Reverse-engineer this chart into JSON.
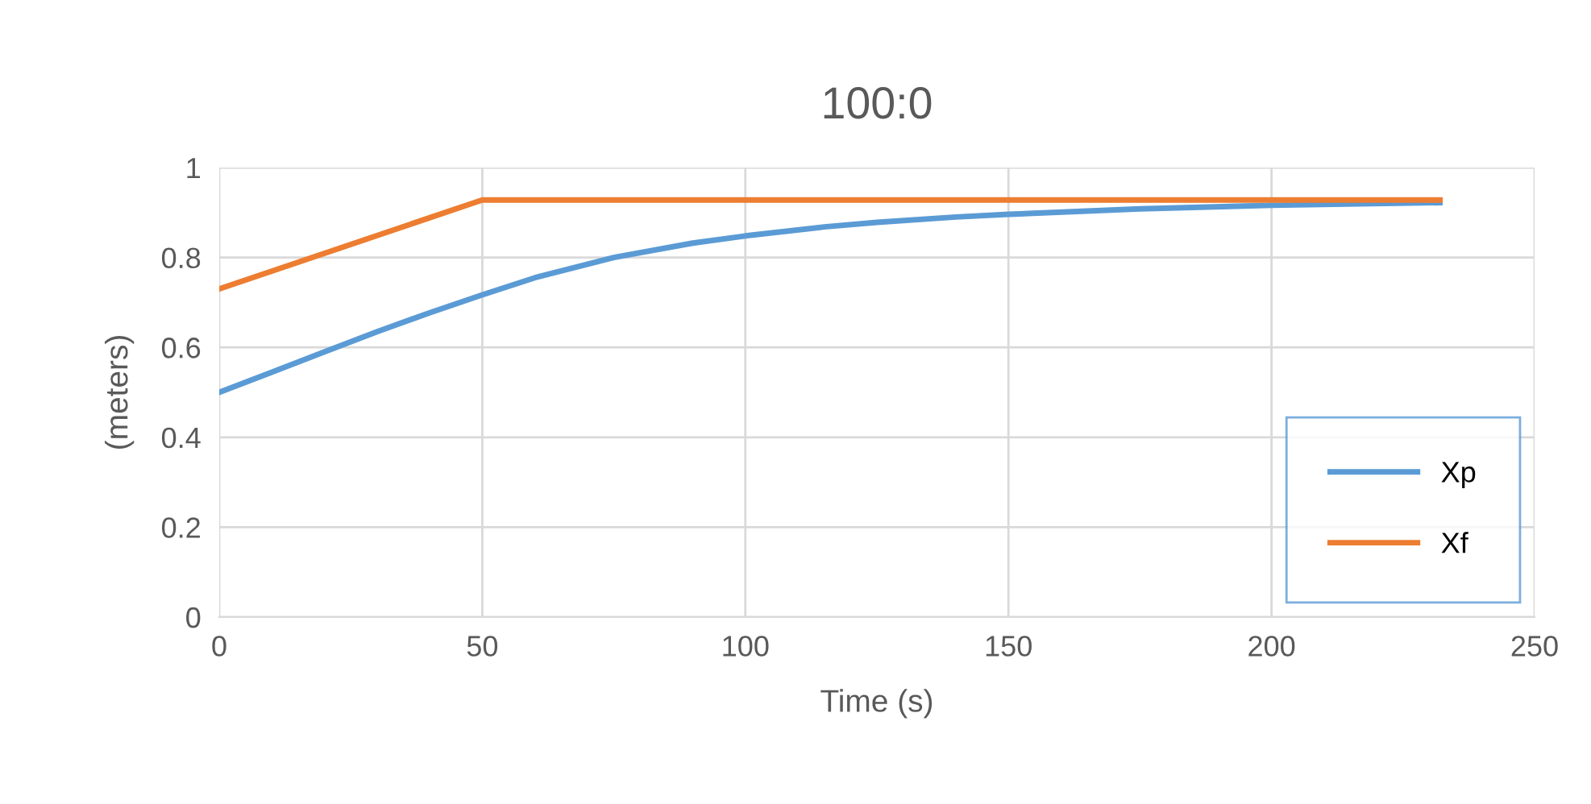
{
  "chart_data": {
    "type": "line",
    "title": "100:0",
    "xlabel": "Time (s)",
    "ylabel": "(meters)",
    "xlim": [
      0,
      250
    ],
    "xticks": [
      0,
      50,
      100,
      150,
      200,
      250
    ],
    "ylim": [
      0,
      1
    ],
    "yticks": [
      0,
      0.2,
      0.4,
      0.6,
      0.8,
      1
    ],
    "grid": true,
    "legend": "bottom right",
    "marker": "none",
    "line_style": "solid",
    "series": [
      {
        "name": "Xp",
        "color": "#5b9bd5",
        "x": [
          0,
          10,
          20,
          30,
          40,
          50,
          60,
          75,
          90,
          100,
          115,
          125,
          140,
          150,
          175,
          200,
          232
        ],
        "values": [
          0.5,
          0.545,
          0.59,
          0.635,
          0.677,
          0.717,
          0.755,
          0.8,
          0.832,
          0.848,
          0.868,
          0.878,
          0.89,
          0.896,
          0.908,
          0.916,
          0.922
        ]
      },
      {
        "name": "Xf",
        "color": "#ed7d31",
        "x": [
          0,
          50,
          232
        ],
        "values": [
          0.73,
          0.928,
          0.928
        ]
      }
    ]
  }
}
